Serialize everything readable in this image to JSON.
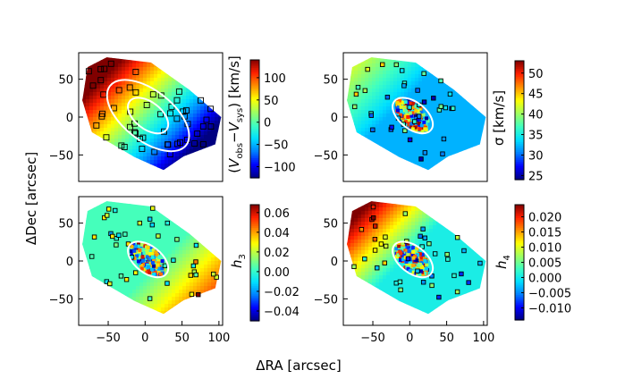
{
  "figure": {
    "xlabel": "ΔRA [arcsec]",
    "ylabel": "ΔDec [arcsec]"
  },
  "colors": {
    "colormap": [
      "#000080",
      "#0000ff",
      "#0080ff",
      "#00e0ff",
      "#40ffc0",
      "#a0ff60",
      "#ffff00",
      "#ff9000",
      "#ff2000",
      "#800000"
    ],
    "ellipse": "#ffffff",
    "marker_edge": "#000000",
    "frame": "#000000"
  },
  "chart_data": [
    {
      "type": "heatmap",
      "name": "velocity",
      "title": "",
      "cbar_label_parts": [
        "(",
        "V",
        "obs",
        "−",
        "V",
        "sys",
        ") [km/s]"
      ],
      "clim": [
        -125,
        140
      ],
      "cbar_ticks": [
        100,
        50,
        0,
        -50,
        -100
      ],
      "cbar_tick_labels": [
        "100",
        "50",
        "0",
        "−50",
        "−100"
      ],
      "xlim": [
        -90,
        105
      ],
      "ylim": [
        -85,
        85
      ],
      "xticks": [],
      "yticks": [
        50,
        0,
        -50
      ],
      "ytick_labels": [
        "50",
        "0",
        "−50"
      ],
      "field": "velocity gradient along major axis: positive at north-east, negative at south-west",
      "markers": "open squares (discrete tracer velocities)",
      "ellipses": 2
    },
    {
      "type": "heatmap",
      "name": "dispersion",
      "title": "",
      "cbar_label": "σ [km/s]",
      "clim": [
        24,
        53
      ],
      "cbar_ticks": [
        50,
        45,
        40,
        35,
        30,
        25
      ],
      "cbar_tick_labels": [
        "50",
        "45",
        "40",
        "35",
        "30",
        "25"
      ],
      "xlim": [
        -90,
        105
      ],
      "ylim": [
        -85,
        85
      ],
      "xticks": [],
      "yticks": [
        50,
        0,
        -50
      ],
      "ytick_labels": [
        "50",
        "0",
        "−50"
      ],
      "field": "dispersion low (~28-32 km/s) over most of the field, rising to ~45 km/s to the north-east",
      "markers": "filled squares colored by dispersion",
      "ellipses": 1
    },
    {
      "type": "heatmap",
      "name": "h3",
      "title": "",
      "cbar_label_parts": [
        "h",
        "3"
      ],
      "clim": [
        -0.05,
        0.068
      ],
      "cbar_ticks": [
        0.06,
        0.04,
        0.02,
        0.0,
        -0.02,
        -0.04
      ],
      "cbar_tick_labels": [
        "0.06",
        "0.04",
        "0.02",
        "0.00",
        "−0.02",
        "−0.04"
      ],
      "xlim": [
        -90,
        105
      ],
      "ylim": [
        -85,
        85
      ],
      "xticks": [
        -50,
        0,
        50,
        100
      ],
      "xtick_labels": [
        "−50",
        "0",
        "50",
        "100"
      ],
      "yticks": [
        50,
        0,
        -50
      ],
      "ytick_labels": [
        "50",
        "0",
        "−50"
      ],
      "field": "h3 near zero on the north-east side, rising to ~0.06 on the south-west edge",
      "markers": "filled squares colored by h3",
      "ellipses": 1
    },
    {
      "type": "heatmap",
      "name": "h4",
      "title": "",
      "cbar_label_parts": [
        "h",
        "4"
      ],
      "clim": [
        -0.014,
        0.024
      ],
      "cbar_ticks": [
        0.02,
        0.015,
        0.01,
        0.005,
        0.0,
        -0.005,
        -0.01
      ],
      "cbar_tick_labels": [
        "0.020",
        "0.015",
        "0.010",
        "0.005",
        "0.000",
        "−0.005",
        "−0.010"
      ],
      "xlim": [
        -90,
        105
      ],
      "ylim": [
        -85,
        85
      ],
      "xticks": [
        -50,
        0,
        50,
        100
      ],
      "xtick_labels": [
        "−50",
        "0",
        "50",
        "100"
      ],
      "yticks": [
        50,
        0,
        -50
      ],
      "ytick_labels": [
        "50",
        "0",
        "−50"
      ],
      "field": "h4 high (~0.02) to the north-east, near zero in the centre and south-west",
      "markers": "filled squares colored by h4",
      "ellipses": 1
    }
  ]
}
